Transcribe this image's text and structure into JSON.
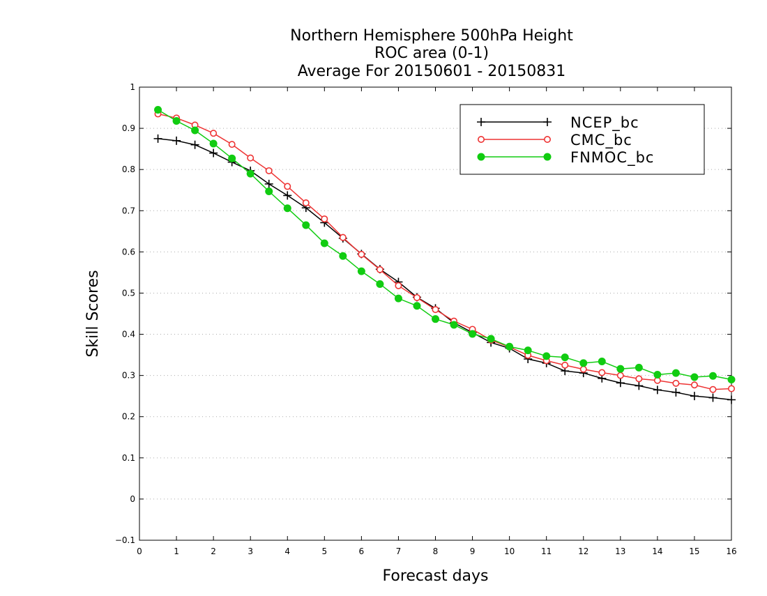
{
  "chart_data": {
    "type": "line",
    "title": [
      "Northern Hemisphere 500hPa Height",
      "ROC area (0-1)",
      "Average For 20150601 - 20150831"
    ],
    "xlabel": "Forecast days",
    "ylabel": "Skill Scores",
    "xlim": [
      0,
      16
    ],
    "ylim": [
      -0.1,
      1
    ],
    "x_ticks": [
      0,
      1,
      2,
      3,
      4,
      5,
      6,
      7,
      8,
      9,
      10,
      11,
      12,
      13,
      14,
      15,
      16
    ],
    "y_ticks": [
      -0.1,
      0,
      0.1,
      0.2,
      0.3,
      0.4,
      0.5,
      0.6,
      0.7,
      0.8,
      0.9,
      1
    ],
    "x_tick_labels": [
      "0",
      "1",
      "2",
      "3",
      "4",
      "5",
      "6",
      "7",
      "8",
      "9",
      "10",
      "11",
      "12",
      "13",
      "14",
      "15",
      "16"
    ],
    "y_tick_labels": [
      "−0.1",
      "0",
      "0.1",
      "0.2",
      "0.3",
      "0.4",
      "0.5",
      "0.6",
      "0.7",
      "0.8",
      "0.9",
      "1"
    ],
    "grid": "horizontal dotted",
    "legend_position": "top-right",
    "x": [
      0.5,
      1,
      1.5,
      2,
      2.5,
      3,
      3.5,
      4,
      4.5,
      5,
      5.5,
      6,
      6.5,
      7,
      7.5,
      8,
      8.5,
      9,
      9.5,
      10,
      10.5,
      11,
      11.5,
      12,
      12.5,
      13,
      13.5,
      14,
      14.5,
      15,
      15.5,
      16
    ],
    "series": [
      {
        "name": "NCEP_bc",
        "color": "#000000",
        "marker": "plus",
        "values": [
          0.875,
          0.87,
          0.86,
          0.84,
          0.818,
          0.797,
          0.765,
          0.737,
          0.707,
          0.671,
          0.633,
          0.595,
          0.558,
          0.527,
          0.49,
          0.463,
          0.428,
          0.404,
          0.38,
          0.366,
          0.34,
          0.33,
          0.311,
          0.306,
          0.293,
          0.282,
          0.275,
          0.265,
          0.259,
          0.25,
          0.246,
          0.241
        ]
      },
      {
        "name": "CMC_bc",
        "color": "#ee3333",
        "marker": "open-circle",
        "values": [
          0.935,
          0.925,
          0.908,
          0.888,
          0.861,
          0.828,
          0.797,
          0.759,
          0.719,
          0.68,
          0.635,
          0.594,
          0.557,
          0.518,
          0.489,
          0.46,
          0.432,
          0.412,
          0.386,
          0.369,
          0.349,
          0.336,
          0.325,
          0.315,
          0.307,
          0.3,
          0.292,
          0.288,
          0.281,
          0.277,
          0.266,
          0.268
        ]
      },
      {
        "name": "FNMOC_bc",
        "color": "#11cc11",
        "marker": "filled-circle",
        "values": [
          0.945,
          0.918,
          0.895,
          0.863,
          0.827,
          0.79,
          0.747,
          0.706,
          0.665,
          0.621,
          0.59,
          0.553,
          0.522,
          0.487,
          0.469,
          0.437,
          0.423,
          0.401,
          0.389,
          0.37,
          0.361,
          0.347,
          0.344,
          0.33,
          0.334,
          0.316,
          0.319,
          0.302,
          0.306,
          0.296,
          0.299,
          0.29
        ]
      }
    ]
  }
}
